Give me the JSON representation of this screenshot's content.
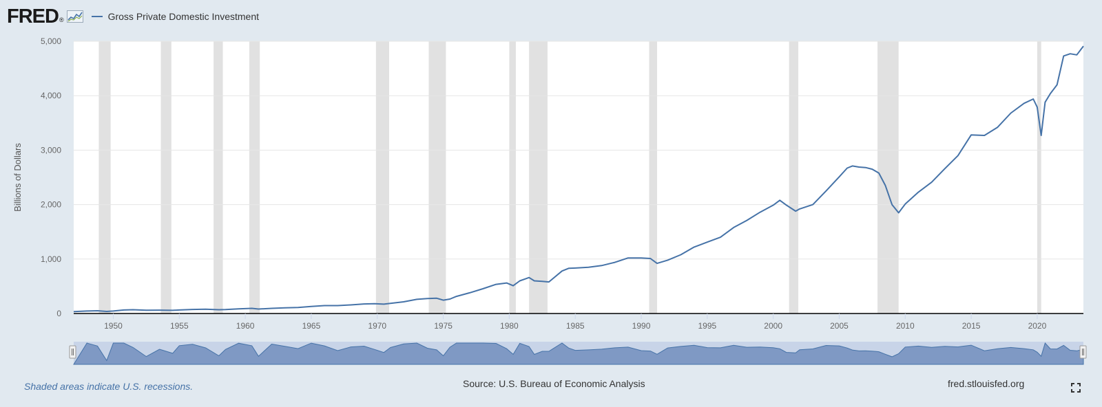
{
  "header": {
    "logo_text": "FRED",
    "logo_mark": "®",
    "logo_icon": "fred-graph-icon"
  },
  "footer": {
    "recession_note": "Shaded areas indicate U.S. recessions.",
    "source": "Source: U.S. Bureau of Economic Analysis",
    "site": "fred.stlouisfed.org",
    "fullscreen_icon": "fullscreen-icon"
  },
  "colors": {
    "series": "#4572a7",
    "background": "#e1e9f0",
    "plot_bg": "#ffffff",
    "recession": "#e1e1e1",
    "navigator_fill": "#a5b8d8"
  },
  "chart_data": {
    "type": "line",
    "title": "",
    "ylabel": "Billions of Dollars",
    "xlabel": "",
    "xlim": [
      1947.0,
      2023.5
    ],
    "ylim": [
      0,
      5000
    ],
    "yticks": [
      0,
      1000,
      2000,
      3000,
      4000,
      5000
    ],
    "ytick_labels": [
      "0",
      "1,000",
      "2,000",
      "3,000",
      "4,000",
      "5,000"
    ],
    "xticks": [
      1950,
      1955,
      1960,
      1965,
      1970,
      1975,
      1980,
      1985,
      1990,
      1995,
      2000,
      2005,
      2010,
      2015,
      2020
    ],
    "xtick_labels": [
      "1950",
      "1955",
      "1960",
      "1965",
      "1970",
      "1975",
      "1980",
      "1985",
      "1990",
      "1995",
      "2000",
      "2005",
      "2010",
      "2015",
      "2020"
    ],
    "grid": true,
    "legend_position": "top-left",
    "recessions": [
      [
        1948.9,
        1949.8
      ],
      [
        1953.6,
        1954.4
      ],
      [
        1957.6,
        1958.3
      ],
      [
        1960.3,
        1961.1
      ],
      [
        1969.9,
        1970.9
      ],
      [
        1973.9,
        1975.2
      ],
      [
        1980.0,
        1980.5
      ],
      [
        1981.5,
        1982.9
      ],
      [
        1990.6,
        1991.2
      ],
      [
        2001.2,
        2001.9
      ],
      [
        2007.9,
        2009.5
      ],
      [
        2020.0,
        2020.3
      ]
    ],
    "series": [
      {
        "name": "Gross Private Domestic Investment",
        "x": [
          1947.0,
          1948.0,
          1948.8,
          1949.5,
          1950.0,
          1950.8,
          1951.5,
          1952.5,
          1953.5,
          1954.5,
          1955.0,
          1956.0,
          1957.0,
          1958.0,
          1958.5,
          1959.5,
          1960.5,
          1961.0,
          1962.0,
          1963.0,
          1964.0,
          1965.0,
          1966.0,
          1967.0,
          1968.0,
          1969.0,
          1969.8,
          1970.5,
          1971.0,
          1972.0,
          1973.0,
          1973.8,
          1974.5,
          1975.0,
          1975.5,
          1976.0,
          1977.0,
          1978.0,
          1979.0,
          1979.8,
          1980.3,
          1980.8,
          1981.5,
          1981.9,
          1982.5,
          1983.0,
          1984.0,
          1984.5,
          1985.0,
          1986.0,
          1987.0,
          1988.0,
          1989.0,
          1990.0,
          1990.7,
          1991.2,
          1992.0,
          1993.0,
          1994.0,
          1995.0,
          1996.0,
          1997.0,
          1998.0,
          1999.0,
          2000.0,
          2000.5,
          2001.0,
          2001.7,
          2002.0,
          2003.0,
          2004.0,
          2005.0,
          2005.6,
          2006.0,
          2006.5,
          2007.0,
          2007.5,
          2008.0,
          2008.5,
          2009.0,
          2009.5,
          2010.0,
          2011.0,
          2012.0,
          2013.0,
          2014.0,
          2015.0,
          2016.0,
          2017.0,
          2018.0,
          2019.0,
          2019.7,
          2020.0,
          2020.3,
          2020.6,
          2021.0,
          2021.5,
          2022.0,
          2022.5,
          2023.0,
          2023.5
        ],
        "values": [
          35,
          45,
          50,
          38,
          45,
          65,
          70,
          60,
          62,
          58,
          65,
          75,
          80,
          70,
          72,
          85,
          95,
          82,
          95,
          105,
          110,
          130,
          145,
          145,
          158,
          175,
          180,
          172,
          185,
          215,
          260,
          275,
          280,
          245,
          265,
          315,
          380,
          455,
          535,
          560,
          510,
          600,
          660,
          600,
          590,
          580,
          780,
          830,
          835,
          850,
          880,
          940,
          1020,
          1020,
          1010,
          920,
          980,
          1080,
          1220,
          1310,
          1400,
          1580,
          1710,
          1860,
          1990,
          2080,
          1990,
          1880,
          1920,
          2000,
          2250,
          2510,
          2670,
          2710,
          2690,
          2680,
          2650,
          2580,
          2350,
          2000,
          1850,
          2010,
          2230,
          2410,
          2660,
          2900,
          3280,
          3270,
          3420,
          3680,
          3860,
          3940,
          3790,
          3270,
          3880,
          4040,
          4200,
          4730,
          4770,
          4750,
          4910
        ]
      }
    ]
  }
}
